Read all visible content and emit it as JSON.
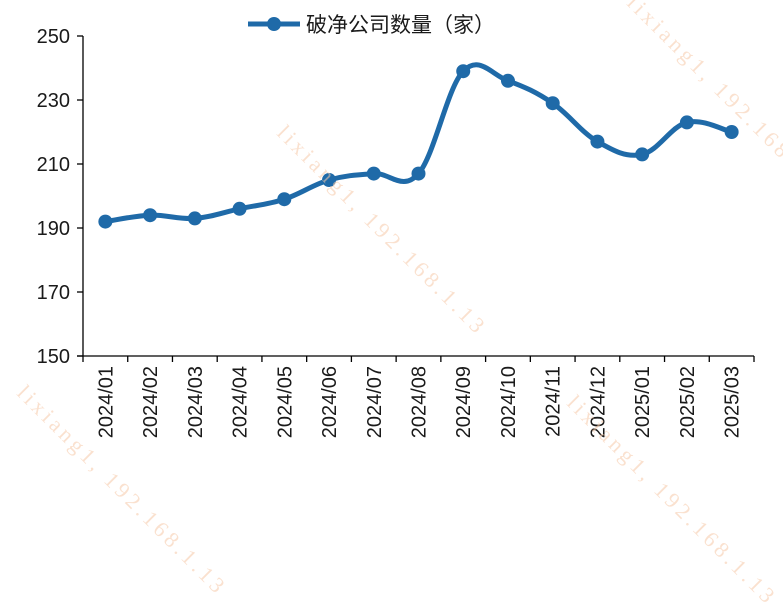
{
  "chart_data": {
    "type": "line",
    "title": "",
    "legend": {
      "position": "top",
      "entries": [
        "破净公司数量（家）"
      ]
    },
    "xlabel": "",
    "ylabel": "",
    "categories": [
      "2024/01",
      "2024/02",
      "2024/03",
      "2024/04",
      "2024/05",
      "2024/06",
      "2024/07",
      "2024/08",
      "2024/09",
      "2024/10",
      "2024/11",
      "2024/12",
      "2025/01",
      "2025/02",
      "2025/03"
    ],
    "series": [
      {
        "name": "破净公司数量（家）",
        "color": "#1f6aa8",
        "marker": "circle",
        "smooth": true,
        "values": [
          192,
          194,
          193,
          196,
          199,
          205,
          207,
          207,
          239,
          236,
          229,
          217,
          213,
          223,
          220
        ]
      }
    ],
    "ylim": [
      150,
      250
    ],
    "yticks": [
      150,
      170,
      190,
      210,
      230,
      250
    ],
    "grid": false
  },
  "watermark": {
    "text": "lixiang1, 192.168.1.13",
    "color": "#f7c9a8"
  },
  "style": {
    "axis_color": "#000000",
    "line_color": "#1f6aa8",
    "text_color": "#1a1a1a"
  }
}
